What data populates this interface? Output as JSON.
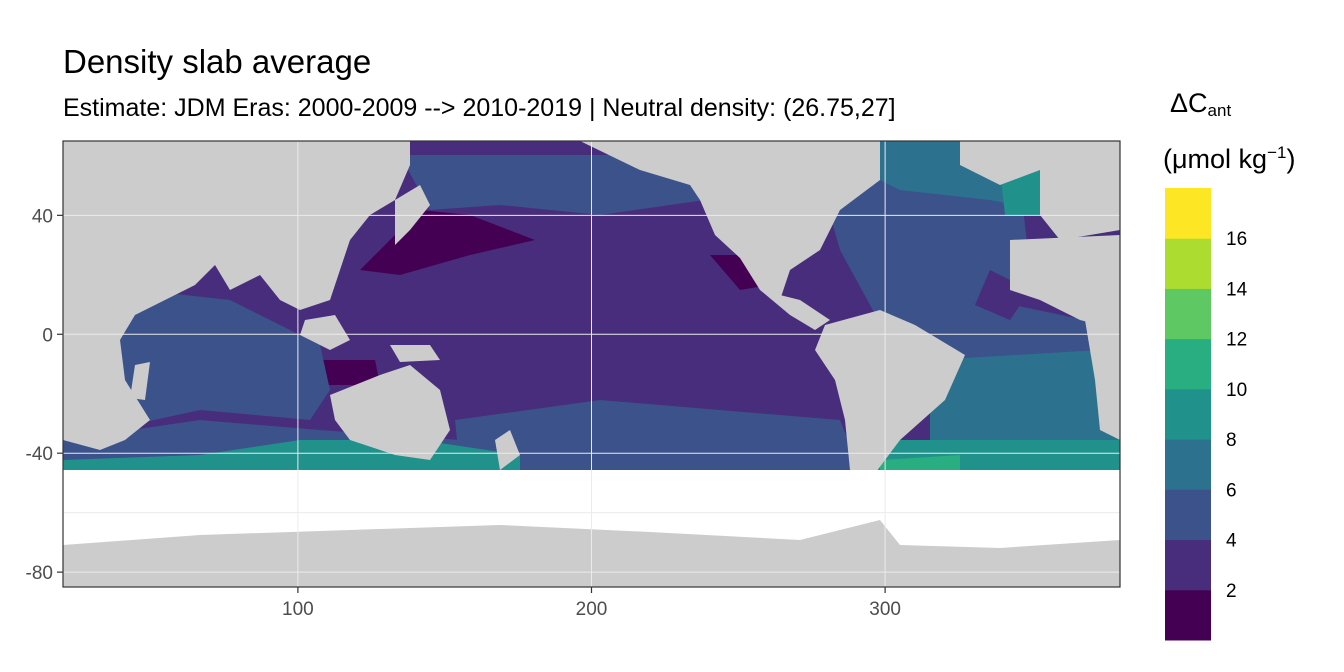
{
  "chart_data": {
    "type": "heatmap",
    "title": "Density slab average",
    "subtitle": "Estimate: JDM Eras: 2000-2009 --> 2010-2019 | Neutral density: (26.75,27]",
    "legend_title_symbol": "ΔC",
    "legend_title_subscript": "ant",
    "legend_title_units": "(μmol kg",
    "legend_title_exponent": "−1",
    "legend_title_close": ")",
    "x_range": [
      20,
      380
    ],
    "y_range": [
      -85,
      65
    ],
    "x_ticks": [
      {
        "value": 100,
        "label": "100"
      },
      {
        "value": 200,
        "label": "200"
      },
      {
        "value": 300,
        "label": "300"
      }
    ],
    "y_ticks": [
      {
        "value": 40,
        "label": "40"
      },
      {
        "value": 0,
        "label": "0"
      },
      {
        "value": -40,
        "label": "-40"
      },
      {
        "value": -80,
        "label": "-80"
      }
    ],
    "grid": true,
    "legend_placement": "right",
    "colors": {
      "land": "#cccccc",
      "missing": "#ffffff",
      "grid": "#ebebeb",
      "border": "#333333"
    },
    "color_scale": [
      {
        "min": 0,
        "max": 2,
        "color": "#440154"
      },
      {
        "min": 2,
        "max": 4,
        "color": "#472d7b"
      },
      {
        "min": 4,
        "max": 6,
        "color": "#3b528b"
      },
      {
        "min": 6,
        "max": 8,
        "color": "#2c728e"
      },
      {
        "min": 8,
        "max": 10,
        "color": "#21918c"
      },
      {
        "min": 10,
        "max": 12,
        "color": "#28ae80"
      },
      {
        "min": 12,
        "max": 14,
        "color": "#5ec962"
      },
      {
        "min": 14,
        "max": 16,
        "color": "#addc30"
      },
      {
        "min": 16,
        "max": 18,
        "color": "#fde725"
      }
    ],
    "legend_labels": [
      "2",
      "4",
      "6",
      "8",
      "10",
      "12",
      "14",
      "16"
    ]
  }
}
